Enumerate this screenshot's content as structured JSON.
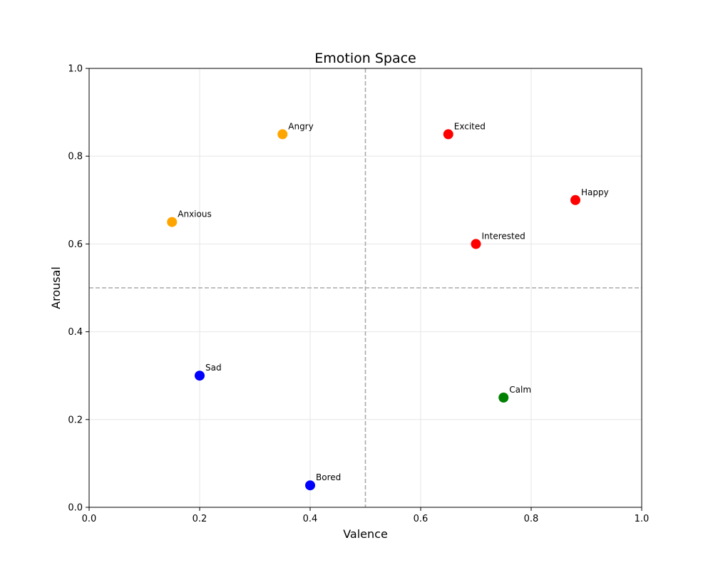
{
  "chart_data": {
    "type": "scatter",
    "title": "Emotion Space",
    "xlabel": "Valence",
    "ylabel": "Arousal",
    "xlim": [
      0,
      1
    ],
    "ylim": [
      0,
      1
    ],
    "grid": true,
    "xticks": [
      0.0,
      0.2,
      0.4,
      0.6,
      0.8,
      1.0
    ],
    "yticks": [
      0.0,
      0.2,
      0.4,
      0.6,
      0.8,
      1.0
    ],
    "xtick_labels": [
      "0.0",
      "0.2",
      "0.4",
      "0.6",
      "0.8",
      "1.0"
    ],
    "ytick_labels": [
      "0.0",
      "0.2",
      "0.4",
      "0.6",
      "0.8",
      "1.0"
    ],
    "reference_lines": {
      "x": 0.5,
      "y": 0.5,
      "style": "dashed",
      "color": "#aaaaaa"
    },
    "points": [
      {
        "label": "Happy",
        "x": 0.88,
        "y": 0.7,
        "color": "#ff0000"
      },
      {
        "label": "Excited",
        "x": 0.65,
        "y": 0.85,
        "color": "#ff0000"
      },
      {
        "label": "Interested",
        "x": 0.7,
        "y": 0.6,
        "color": "#ff0000"
      },
      {
        "label": "Angry",
        "x": 0.35,
        "y": 0.85,
        "color": "#ffa500"
      },
      {
        "label": "Anxious",
        "x": 0.15,
        "y": 0.65,
        "color": "#ffa500"
      },
      {
        "label": "Sad",
        "x": 0.2,
        "y": 0.3,
        "color": "#0000ff"
      },
      {
        "label": "Bored",
        "x": 0.4,
        "y": 0.05,
        "color": "#0000ff"
      },
      {
        "label": "Calm",
        "x": 0.75,
        "y": 0.25,
        "color": "#008000"
      }
    ]
  }
}
